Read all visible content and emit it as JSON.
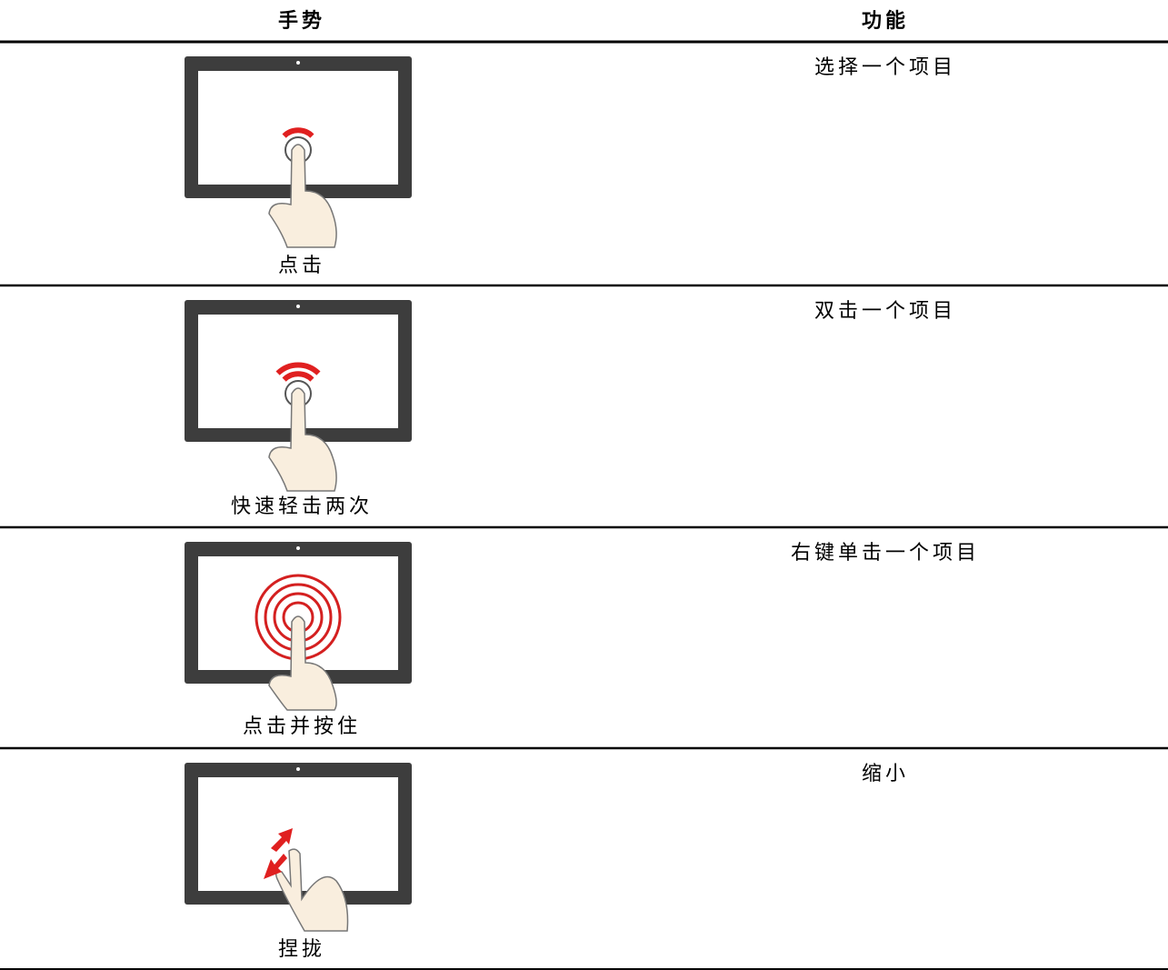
{
  "table": {
    "headers": [
      "手势",
      "功能"
    ],
    "rows": [
      [
        "点击",
        "选择一个项目"
      ],
      [
        "快速轻击两次",
        "双击一个项目"
      ],
      [
        "点击并按住",
        "右键单击一个项目"
      ],
      [
        "捏拢",
        "缩小"
      ]
    ]
  }
}
